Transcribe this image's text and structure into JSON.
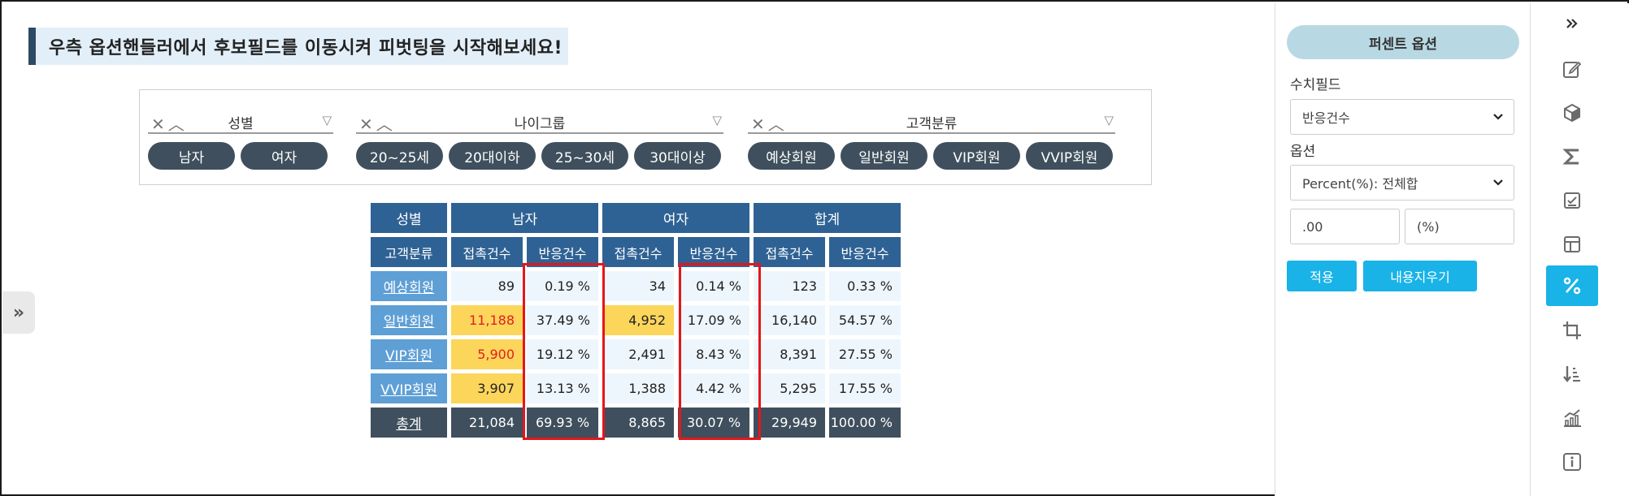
{
  "banner": {
    "text": "우측 옵션핸들러에서 후보필드를 이동시켜 피벗팅을 시작해보세요!"
  },
  "filters": [
    {
      "title": "성별",
      "chips": [
        "남자",
        "여자"
      ]
    },
    {
      "title": "나이그룹",
      "chips": [
        "20~25세",
        "20대이하",
        "25~30세",
        "30대이상"
      ]
    },
    {
      "title": "고객분류",
      "chips": [
        "예상회원",
        "일반회원",
        "VIP회원",
        "VVIP회원"
      ]
    }
  ],
  "table": {
    "corner_top": "성별",
    "corner_bottom": "고객분류",
    "groups": [
      "남자",
      "여자",
      "합계"
    ],
    "subheaders": [
      "접촉건수",
      "반응건수",
      "접촉건수",
      "반응건수",
      "접촉건수",
      "반응건수"
    ],
    "rows": [
      {
        "label": "예상회원",
        "cells": [
          "89",
          "0.19 %",
          "34",
          "0.14 %",
          "123",
          "0.33 %"
        ]
      },
      {
        "label": "일반회원",
        "cells": [
          "11,188",
          "37.49 %",
          "4,952",
          "17.09 %",
          "16,140",
          "54.57 %"
        ]
      },
      {
        "label": "VIP회원",
        "cells": [
          "5,900",
          "19.12 %",
          "2,491",
          "8.43 %",
          "8,391",
          "27.55 %"
        ]
      },
      {
        "label": "VVIP회원",
        "cells": [
          "3,907",
          "13.13 %",
          "1,388",
          "4.42 %",
          "5,295",
          "17.55 %"
        ]
      }
    ],
    "total": {
      "label": "총계",
      "cells": [
        "21,084",
        "69.93 %",
        "8,865",
        "30.07 %",
        "29,949",
        "100.00 %"
      ]
    },
    "highlight_color": "#fcd55b",
    "alert_text_color": "#e02020",
    "header_color": "#2f6294",
    "outline_color": "#e4161b"
  },
  "panel": {
    "title": "퍼센트 옵션",
    "field_label": "수치필드",
    "field_value": "반응건수",
    "option_label": "옵션",
    "option_value": "Percent(%): 전체합",
    "format_value": ".00",
    "suffix_value": "(%)",
    "apply_label": "적용",
    "clear_label": "내용지우기",
    "accent_color": "#19b3e8"
  },
  "rail_icons": [
    "chevrons-right-icon",
    "edit-icon",
    "cube-icon",
    "sigma-icon",
    "checklist-icon",
    "layout-icon",
    "percent-icon",
    "crop-icon",
    "sort-icon",
    "chart-icon",
    "info-icon"
  ],
  "left_toggle": "»"
}
